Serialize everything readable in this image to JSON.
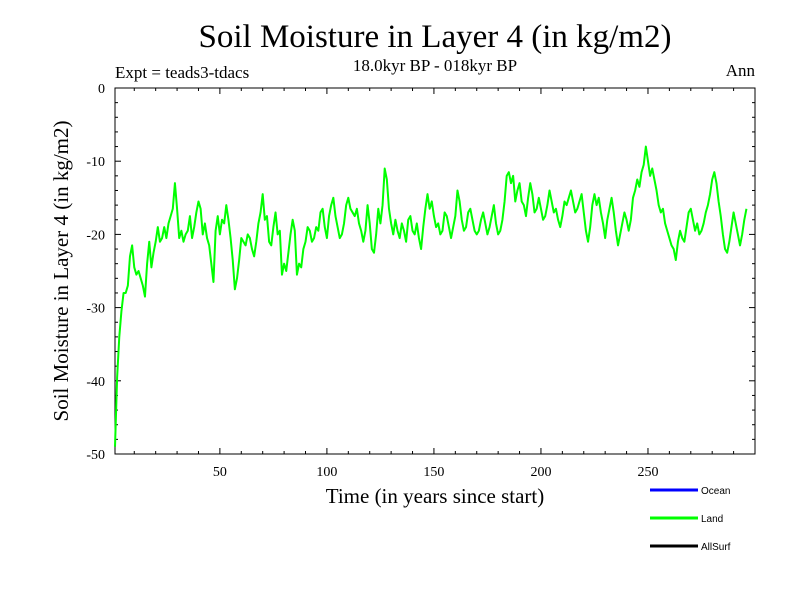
{
  "chart_data": {
    "type": "line",
    "title": "Soil Moisture in Layer 4 (in kg/m2)",
    "subtitle": "18.0kyr BP - 018kyr BP",
    "experiment": "Expt = teads3-tdacs",
    "period": "Ann",
    "xlabel": "Time (in years since start)",
    "ylabel": "Soil Moisture in Layer 4 (in kg/m2)",
    "xlim": [
      1,
      300
    ],
    "ylim": [
      -50,
      0
    ],
    "x_ticks": [
      50,
      100,
      150,
      200,
      250
    ],
    "y_ticks": [
      0,
      -10,
      -20,
      -30,
      -40,
      -50
    ],
    "grid": false,
    "legend_position": "bottom-right",
    "legend": [
      {
        "name": "Ocean",
        "color": "#0000ff"
      },
      {
        "name": "Land",
        "color": "#00ff00"
      },
      {
        "name": "AllSurf",
        "color": "#000000"
      }
    ],
    "series": [
      {
        "name": "Land",
        "color": "#00ff00",
        "x_start": 1,
        "x_step": 1,
        "values": [
          -49.0,
          -39.5,
          -34.0,
          -30.5,
          -28.0,
          -28.0,
          -27.0,
          -23.0,
          -21.5,
          -24.5,
          -25.5,
          -25.0,
          -26.0,
          -27.0,
          -28.5,
          -24.0,
          -21.0,
          -24.5,
          -22.5,
          -21.0,
          -19.0,
          -21.0,
          -20.5,
          -19.0,
          -20.5,
          -18.5,
          -17.5,
          -16.5,
          -13.0,
          -16.5,
          -20.5,
          -19.5,
          -21.0,
          -20.0,
          -19.5,
          -17.5,
          -20.5,
          -19.0,
          -17.0,
          -15.5,
          -16.5,
          -20.0,
          -18.5,
          -20.5,
          -21.5,
          -24.0,
          -26.5,
          -19.5,
          -17.5,
          -20.0,
          -18.0,
          -18.5,
          -16.0,
          -18.0,
          -20.5,
          -23.5,
          -27.5,
          -26.0,
          -23.5,
          -20.5,
          -21.0,
          -21.5,
          -20.0,
          -20.5,
          -22.0,
          -23.0,
          -21.0,
          -18.5,
          -17.0,
          -14.5,
          -18.0,
          -17.5,
          -21.0,
          -21.5,
          -19.0,
          -17.0,
          -20.0,
          -19.5,
          -25.5,
          -24.0,
          -25.0,
          -22.5,
          -20.0,
          -18.0,
          -19.5,
          -25.5,
          -24.0,
          -24.5,
          -22.0,
          -21.0,
          -19.0,
          -19.5,
          -21.0,
          -20.5,
          -19.0,
          -19.5,
          -17.0,
          -16.5,
          -19.0,
          -20.5,
          -17.5,
          -16.0,
          -15.0,
          -17.5,
          -19.0,
          -20.5,
          -20.0,
          -18.5,
          -16.0,
          -15.0,
          -16.5,
          -17.0,
          -17.5,
          -16.5,
          -18.5,
          -19.5,
          -21.0,
          -19.5,
          -16.0,
          -18.5,
          -22.0,
          -22.5,
          -20.0,
          -16.5,
          -18.5,
          -16.0,
          -11.0,
          -12.5,
          -16.5,
          -18.5,
          -20.0,
          -18.0,
          -19.5,
          -20.5,
          -18.5,
          -19.5,
          -21.0,
          -18.0,
          -17.5,
          -19.5,
          -20.0,
          -18.5,
          -20.5,
          -22.0,
          -19.0,
          -16.5,
          -14.5,
          -16.5,
          -15.5,
          -17.5,
          -19.0,
          -18.5,
          -20.0,
          -19.5,
          -17.0,
          -17.5,
          -19.0,
          -20.5,
          -19.0,
          -17.5,
          -14.0,
          -15.5,
          -18.0,
          -19.5,
          -19.0,
          -17.0,
          -16.5,
          -18.0,
          -19.5,
          -20.0,
          -19.5,
          -18.0,
          -17.0,
          -18.5,
          -20.0,
          -19.0,
          -17.5,
          -16.0,
          -18.5,
          -20.0,
          -19.5,
          -18.0,
          -15.5,
          -12.0,
          -11.5,
          -13.0,
          -12.0,
          -15.5,
          -14.0,
          -13.0,
          -15.5,
          -16.0,
          -17.5,
          -15.0,
          -13.0,
          -14.5,
          -17.0,
          -16.5,
          -15.0,
          -16.5,
          -18.0,
          -17.5,
          -16.0,
          -14.0,
          -15.5,
          -17.0,
          -16.5,
          -18.0,
          -19.0,
          -17.5,
          -15.5,
          -16.0,
          -15.0,
          -14.0,
          -15.5,
          -17.0,
          -16.5,
          -15.5,
          -14.5,
          -17.0,
          -19.5,
          -21.0,
          -19.0,
          -16.0,
          -14.5,
          -16.0,
          -15.0,
          -17.0,
          -18.5,
          -20.5,
          -18.0,
          -16.5,
          -15.0,
          -17.0,
          -19.5,
          -21.5,
          -20.0,
          -18.5,
          -17.0,
          -18.0,
          -19.5,
          -18.0,
          -15.0,
          -14.0,
          -12.5,
          -13.5,
          -11.5,
          -10.5,
          -8.0,
          -10.0,
          -12.0,
          -11.0,
          -12.5,
          -14.0,
          -16.0,
          -17.0,
          -16.5,
          -18.5,
          -19.5,
          -20.5,
          -21.5,
          -22.0,
          -23.5,
          -21.0,
          -19.5,
          -20.5,
          -21.0,
          -19.0,
          -17.0,
          -16.5,
          -18.0,
          -19.5,
          -18.5,
          -20.0,
          -19.5,
          -18.5,
          -17.0,
          -16.0,
          -14.5,
          -12.5,
          -11.5,
          -13.0,
          -15.5,
          -17.5,
          -20.0,
          -22.0,
          -22.5,
          -21.0,
          -19.0,
          -17.0,
          -18.5,
          -20.0,
          -21.5,
          -20.0,
          -18.0,
          -16.5
        ]
      }
    ]
  }
}
